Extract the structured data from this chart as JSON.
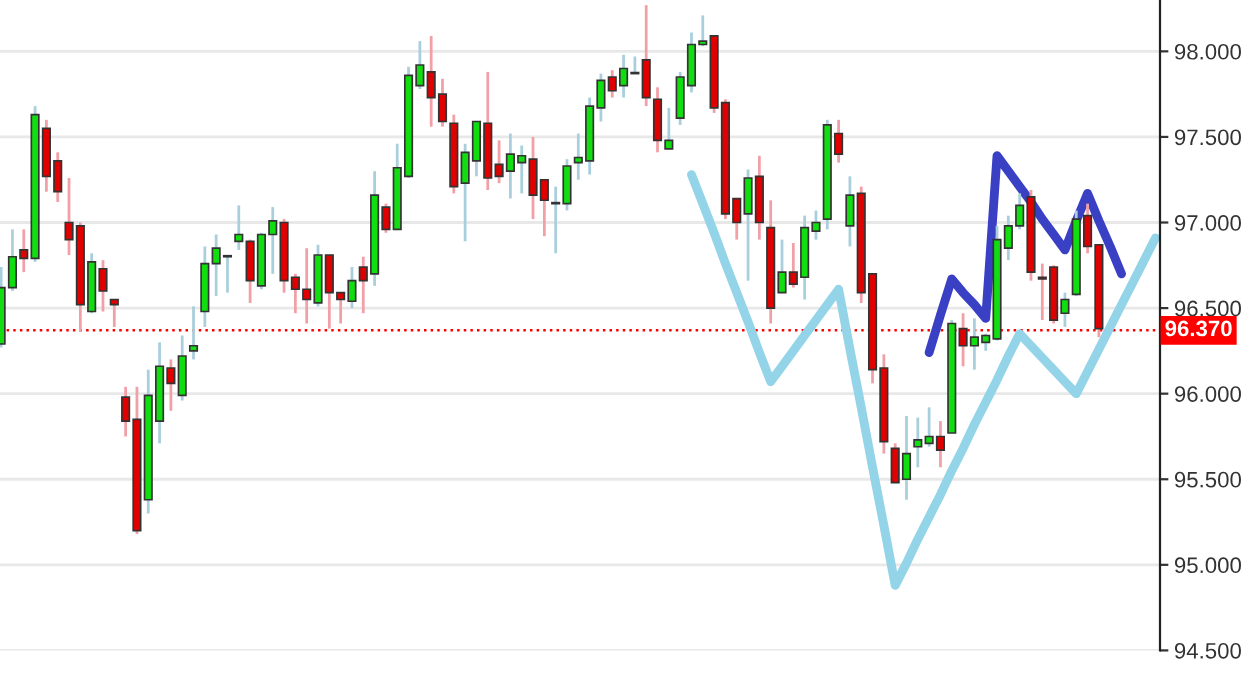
{
  "chart_data": {
    "type": "candlestick",
    "categories": [
      null,
      null,
      null,
      null,
      null,
      null,
      null,
      null,
      null,
      null,
      null,
      null,
      null,
      null,
      null,
      null,
      null,
      null,
      null,
      null,
      null,
      null,
      null,
      null,
      null,
      null,
      null,
      null,
      null,
      null,
      null,
      null,
      null,
      null,
      null,
      null,
      null,
      null,
      null,
      null,
      null,
      null,
      null,
      null,
      null,
      null,
      null,
      null,
      null,
      null,
      null,
      null,
      null,
      null,
      null,
      null,
      null,
      null,
      null,
      null,
      null,
      null,
      null,
      null,
      null,
      null,
      null,
      null,
      null,
      null,
      null,
      null,
      null,
      null,
      null,
      null,
      null,
      null,
      null,
      null,
      null,
      null,
      null,
      null,
      null,
      null,
      null,
      null,
      null,
      null,
      null,
      null,
      null,
      null,
      null,
      null,
      null,
      null,
      null,
      null,
      null,
      null,
      null
    ],
    "ohlc": [
      [
        96.29,
        96.74,
        96.27,
        96.62
      ],
      [
        96.62,
        96.96,
        96.6,
        96.8
      ],
      [
        96.84,
        96.96,
        96.71,
        96.79
      ],
      [
        96.79,
        97.68,
        96.77,
        97.63
      ],
      [
        97.55,
        97.6,
        97.18,
        97.27
      ],
      [
        97.36,
        97.41,
        97.12,
        97.18
      ],
      [
        97.0,
        97.26,
        96.81,
        96.9
      ],
      [
        96.98,
        97.0,
        96.36,
        96.52
      ],
      [
        96.48,
        96.82,
        96.47,
        96.77
      ],
      [
        96.73,
        96.78,
        96.48,
        96.6
      ],
      [
        96.55,
        96.55,
        96.39,
        96.52
      ],
      [
        95.98,
        96.04,
        95.75,
        95.84
      ],
      [
        95.85,
        96.04,
        95.18,
        95.2
      ],
      [
        95.38,
        96.14,
        95.3,
        95.99
      ],
      [
        95.84,
        96.3,
        95.71,
        96.16
      ],
      [
        96.15,
        96.2,
        95.9,
        96.06
      ],
      [
        95.99,
        96.34,
        95.96,
        96.22
      ],
      [
        96.25,
        96.51,
        96.2,
        96.28
      ],
      [
        96.48,
        96.86,
        96.39,
        96.76
      ],
      [
        96.76,
        96.93,
        96.57,
        96.85
      ],
      [
        96.8,
        96.81,
        96.59,
        96.8
      ],
      [
        96.89,
        97.1,
        96.84,
        96.93
      ],
      [
        96.89,
        96.9,
        96.53,
        96.66
      ],
      [
        96.63,
        96.94,
        96.61,
        96.93
      ],
      [
        96.93,
        97.09,
        96.7,
        97.01
      ],
      [
        97.0,
        97.02,
        96.59,
        96.66
      ],
      [
        96.68,
        96.7,
        96.47,
        96.61
      ],
      [
        96.61,
        96.85,
        96.41,
        96.55
      ],
      [
        96.53,
        96.87,
        96.51,
        96.81
      ],
      [
        96.81,
        96.81,
        96.38,
        96.59
      ],
      [
        96.59,
        96.59,
        96.41,
        96.55
      ],
      [
        96.54,
        96.74,
        96.5,
        96.66
      ],
      [
        96.74,
        96.8,
        96.47,
        96.66
      ],
      [
        96.7,
        97.3,
        96.63,
        97.16
      ],
      [
        97.09,
        97.11,
        96.94,
        96.96
      ],
      [
        96.96,
        97.46,
        96.96,
        97.32
      ],
      [
        97.27,
        97.91,
        97.26,
        97.86
      ],
      [
        97.8,
        98.06,
        97.78,
        97.92
      ],
      [
        97.88,
        98.09,
        97.56,
        97.73
      ],
      [
        97.75,
        97.84,
        97.56,
        97.59
      ],
      [
        97.58,
        97.63,
        97.17,
        97.21
      ],
      [
        97.23,
        97.46,
        96.89,
        97.41
      ],
      [
        97.36,
        97.59,
        97.27,
        97.59
      ],
      [
        97.58,
        97.88,
        97.19,
        97.26
      ],
      [
        97.34,
        97.48,
        97.23,
        97.27
      ],
      [
        97.3,
        97.52,
        97.14,
        97.4
      ],
      [
        97.35,
        97.45,
        97.17,
        97.39
      ],
      [
        97.37,
        97.5,
        97.02,
        97.16
      ],
      [
        97.25,
        97.25,
        96.92,
        97.13
      ],
      [
        97.11,
        97.21,
        96.82,
        97.11
      ],
      [
        97.11,
        97.37,
        97.07,
        97.33
      ],
      [
        97.35,
        97.52,
        97.25,
        97.38
      ],
      [
        97.36,
        97.73,
        97.28,
        97.68
      ],
      [
        97.67,
        97.87,
        97.59,
        97.83
      ],
      [
        97.85,
        97.89,
        97.73,
        97.77
      ],
      [
        97.8,
        97.98,
        97.73,
        97.9
      ],
      [
        97.87,
        97.97,
        97.87,
        97.87
      ],
      [
        97.95,
        98.27,
        97.68,
        97.73
      ],
      [
        97.72,
        97.79,
        97.41,
        97.48
      ],
      [
        97.43,
        97.67,
        97.43,
        97.48
      ],
      [
        97.61,
        97.88,
        97.57,
        97.85
      ],
      [
        97.8,
        98.11,
        97.76,
        98.04
      ],
      [
        98.04,
        98.21,
        98.03,
        98.06
      ],
      [
        98.09,
        98.09,
        97.64,
        97.67
      ],
      [
        97.7,
        97.72,
        97.02,
        97.05
      ],
      [
        97.14,
        97.14,
        96.9,
        97.0
      ],
      [
        97.05,
        97.31,
        96.66,
        97.26
      ],
      [
        97.27,
        97.39,
        96.9,
        97.0
      ],
      [
        96.97,
        97.13,
        96.41,
        96.5
      ],
      [
        96.59,
        96.9,
        96.59,
        96.71
      ],
      [
        96.71,
        96.88,
        96.62,
        96.64
      ],
      [
        96.68,
        97.04,
        96.55,
        96.97
      ],
      [
        96.95,
        97.07,
        96.9,
        97.0
      ],
      [
        97.02,
        97.6,
        96.96,
        97.57
      ],
      [
        97.52,
        97.6,
        97.35,
        97.4
      ],
      [
        96.98,
        97.27,
        96.86,
        97.16
      ],
      [
        97.17,
        97.21,
        96.53,
        96.59
      ],
      [
        96.7,
        96.7,
        96.06,
        96.14
      ],
      [
        96.15,
        96.23,
        95.65,
        95.72
      ],
      [
        95.68,
        95.71,
        95.48,
        95.48
      ],
      [
        95.5,
        95.87,
        95.38,
        95.65
      ],
      [
        95.69,
        95.86,
        95.57,
        95.73
      ],
      [
        95.71,
        95.92,
        95.69,
        95.75
      ],
      [
        95.75,
        95.84,
        95.57,
        95.67
      ],
      [
        95.77,
        96.43,
        95.77,
        96.41
      ],
      [
        96.38,
        96.47,
        96.16,
        96.28
      ],
      [
        96.28,
        96.44,
        96.14,
        96.33
      ],
      [
        96.3,
        96.35,
        96.25,
        96.34
      ],
      [
        96.32,
        96.98,
        96.31,
        96.9
      ],
      [
        96.85,
        97.04,
        96.78,
        96.98
      ],
      [
        96.98,
        97.17,
        96.96,
        97.1
      ],
      [
        97.15,
        97.19,
        96.66,
        96.71
      ],
      [
        96.68,
        96.76,
        96.43,
        96.67
      ],
      [
        96.74,
        96.75,
        96.41,
        96.43
      ],
      [
        96.47,
        96.59,
        96.39,
        96.55
      ],
      [
        96.58,
        97.07,
        96.57,
        97.02
      ],
      [
        97.04,
        97.11,
        96.82,
        96.86
      ],
      [
        96.87,
        96.87,
        96.33,
        96.38
      ],
      null,
      null,
      null,
      null,
      null
    ],
    "series": [
      {
        "type": "line",
        "color": "#93d4e8",
        "values": [
          null,
          null,
          null,
          null,
          null,
          null,
          null,
          null,
          null,
          null,
          null,
          null,
          null,
          null,
          null,
          null,
          null,
          null,
          null,
          null,
          null,
          null,
          null,
          null,
          null,
          null,
          null,
          null,
          null,
          null,
          null,
          null,
          null,
          null,
          null,
          null,
          null,
          null,
          null,
          null,
          null,
          null,
          null,
          null,
          null,
          null,
          null,
          null,
          null,
          null,
          null,
          null,
          null,
          null,
          null,
          null,
          null,
          null,
          null,
          null,
          null,
          97.28,
          97.11,
          96.94,
          96.76,
          96.59,
          96.42,
          96.24,
          96.07,
          96.16,
          96.25,
          96.34,
          96.43,
          96.52,
          96.61,
          96.26,
          95.92,
          95.57,
          95.23,
          94.88,
          95.01,
          95.15,
          95.28,
          95.41,
          95.55,
          95.68,
          95.82,
          95.95,
          96.08,
          96.22,
          96.35,
          96.28,
          96.21,
          96.14,
          96.07,
          96.0,
          96.13,
          96.26,
          96.39,
          96.52,
          96.65,
          96.78,
          96.91
        ]
      },
      {
        "type": "line",
        "color": "#3a40c4",
        "values": [
          null,
          null,
          null,
          null,
          null,
          null,
          null,
          null,
          null,
          null,
          null,
          null,
          null,
          null,
          null,
          null,
          null,
          null,
          null,
          null,
          null,
          null,
          null,
          null,
          null,
          null,
          null,
          null,
          null,
          null,
          null,
          null,
          null,
          null,
          null,
          null,
          null,
          null,
          null,
          null,
          null,
          null,
          null,
          null,
          null,
          null,
          null,
          null,
          null,
          null,
          null,
          null,
          null,
          null,
          null,
          null,
          null,
          null,
          null,
          null,
          null,
          null,
          null,
          null,
          null,
          null,
          null,
          null,
          null,
          null,
          null,
          null,
          null,
          null,
          null,
          null,
          null,
          null,
          null,
          null,
          null,
          null,
          96.24,
          96.46,
          96.67,
          96.59,
          96.52,
          96.44,
          97.39,
          97.3,
          97.21,
          97.12,
          97.02,
          96.93,
          96.84,
          97.01,
          97.17,
          97.01,
          96.86,
          96.7,
          null,
          null,
          null
        ]
      }
    ],
    "ylim": [
      94.5,
      98.3
    ],
    "yticks": [
      {
        "value": 94.5,
        "label": "94.500"
      },
      {
        "value": 95,
        "label": "95.000"
      },
      {
        "value": 95.5,
        "label": "95.500"
      },
      {
        "value": 96,
        "label": "96.000"
      },
      {
        "value": 96.5,
        "label": "96.500"
      },
      {
        "value": 97,
        "label": "97.000"
      },
      {
        "value": 97.5,
        "label": "97.500"
      },
      {
        "value": 98,
        "label": "98.000"
      }
    ],
    "ref_lines": [
      {
        "axis": "y",
        "value": 96.37,
        "label": "96.370",
        "color": "#ff0000",
        "line_style": "dotted"
      }
    ],
    "grid": "y",
    "tick_labels": "y"
  }
}
